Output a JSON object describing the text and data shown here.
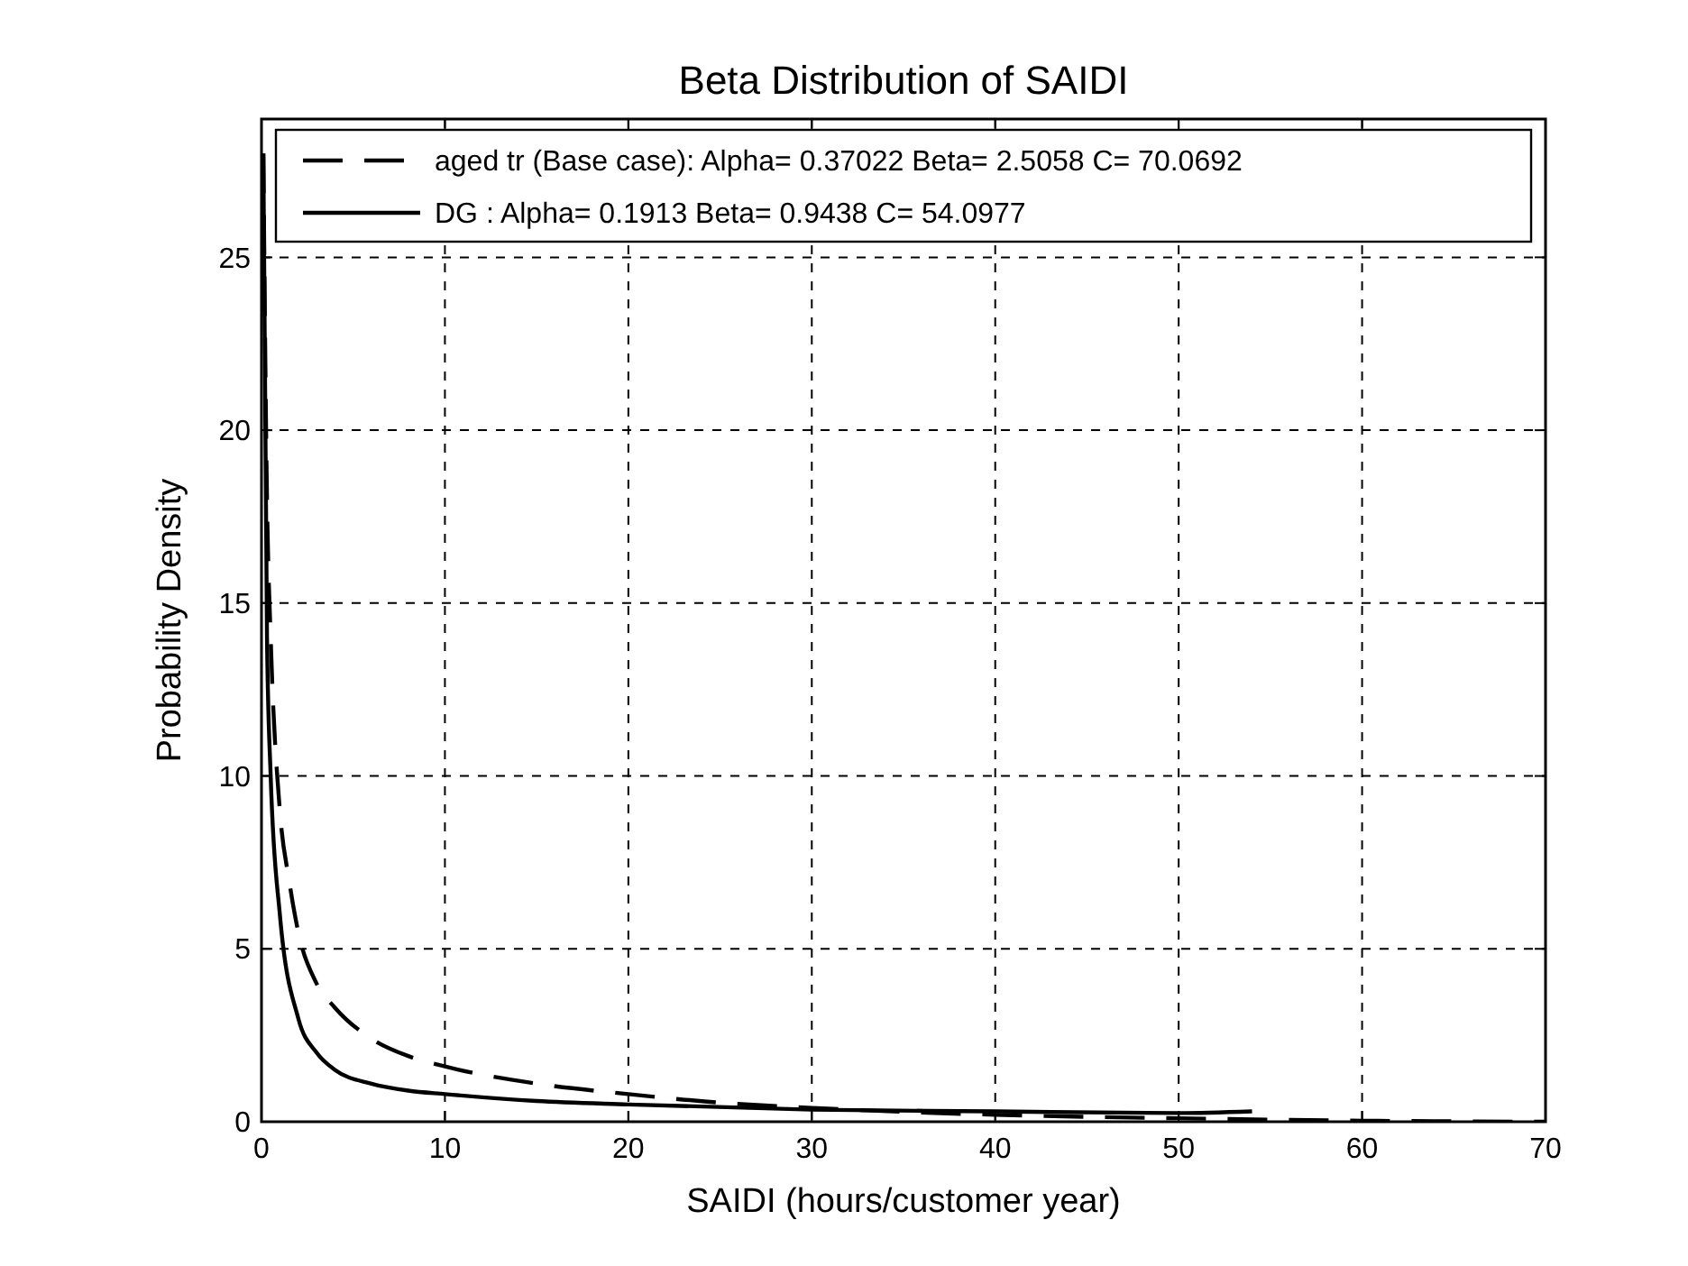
{
  "chart_data": {
    "type": "line",
    "title": "Beta Distribution of SAIDI",
    "xlabel": "SAIDI (hours/customer year)",
    "ylabel": "Probability Density",
    "xlim": [
      0,
      70
    ],
    "ylim": [
      0,
      29
    ],
    "xticks": [
      0,
      10,
      20,
      30,
      40,
      50,
      60,
      70
    ],
    "yticks": [
      0,
      5,
      10,
      15,
      20,
      25
    ],
    "grid": true,
    "legend": "top",
    "marker": "none",
    "series": [
      {
        "name": "aged tr (Base case): Alpha= 0.37022 Beta= 2.5058 C= 70.0692",
        "color": "#000000",
        "line_style": "dashed",
        "x": [
          0.1,
          0.3,
          0.5,
          1,
          1.5,
          2,
          3,
          4,
          6,
          8,
          10,
          15,
          20,
          25,
          30,
          40,
          50,
          60,
          70
        ],
        "values": [
          28,
          18,
          14,
          9,
          7,
          5.5,
          4,
          3.3,
          2.4,
          1.9,
          1.6,
          1.1,
          0.8,
          0.55,
          0.4,
          0.2,
          0.1,
          0.03,
          0
        ]
      },
      {
        "name": "DG : Alpha= 0.1913 Beta= 0.9438 C= 54.0977",
        "color": "#000000",
        "line_style": "solid",
        "x": [
          0.1,
          0.3,
          0.5,
          1,
          2,
          3,
          4,
          6,
          8,
          10,
          15,
          20,
          30,
          40,
          50,
          54
        ],
        "values": [
          28,
          14,
          10,
          6,
          3,
          2,
          1.5,
          1.1,
          0.9,
          0.8,
          0.6,
          0.5,
          0.35,
          0.3,
          0.25,
          0.3
        ]
      }
    ]
  }
}
